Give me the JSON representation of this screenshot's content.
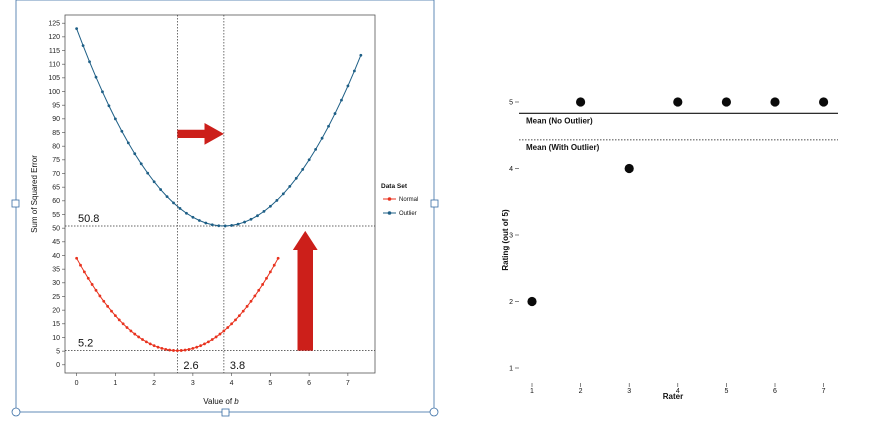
{
  "chart_data": [
    {
      "type": "line",
      "title": "",
      "xlabel_prefix": "Value of ",
      "xlabel_var": "b",
      "ylabel": "Sum of Squared Error",
      "xlim": [
        -0.3,
        7.7
      ],
      "ylim": [
        -3,
        128
      ],
      "xticks": [
        0,
        1,
        2,
        3,
        4,
        5,
        6,
        7
      ],
      "yticks": [
        0,
        5,
        10,
        15,
        20,
        25,
        30,
        35,
        40,
        45,
        50,
        55,
        60,
        65,
        70,
        75,
        80,
        85,
        90,
        95,
        100,
        105,
        110,
        115,
        120,
        125
      ],
      "legend_title": "Data Set",
      "legend_position": "right",
      "series": [
        {
          "name": "Normal",
          "color": "#e8321e",
          "b_min": 0,
          "b_max": 5.2,
          "step": 0.1,
          "vertex_b": 2.6,
          "vertex_sse": 5.2,
          "sse_at_b0": 39
        },
        {
          "name": "Outlier",
          "color": "#1e5f86",
          "b_min": 0,
          "b_max": 7.5,
          "step": 0.1667,
          "vertex_b": 3.8,
          "vertex_sse": 50.8,
          "sse_at_b0": 123
        }
      ],
      "annotations": {
        "h_lines": [
          50.8,
          5.2
        ],
        "v_lines": [
          2.6,
          3.8
        ],
        "labels": [
          "50.8",
          "5.2",
          "2.6",
          "3.8"
        ]
      },
      "arrow_color": "#cc1f1a"
    },
    {
      "type": "scatter",
      "xlabel": "Rater",
      "ylabel": "Rating (out of 5)",
      "xticks": [
        1,
        2,
        3,
        4,
        5,
        6,
        7
      ],
      "yticks": [
        1,
        2,
        3,
        4,
        5
      ],
      "x": [
        1,
        2,
        3,
        4,
        5,
        6,
        7
      ],
      "y": [
        2,
        5,
        4,
        5,
        5,
        5,
        5
      ],
      "lines": [
        {
          "label": "Mean (No Outlier)",
          "value": 4.83,
          "style": "solid"
        },
        {
          "label": "Mean (With Outlier)",
          "value": 4.43,
          "style": "dotted"
        }
      ]
    }
  ]
}
